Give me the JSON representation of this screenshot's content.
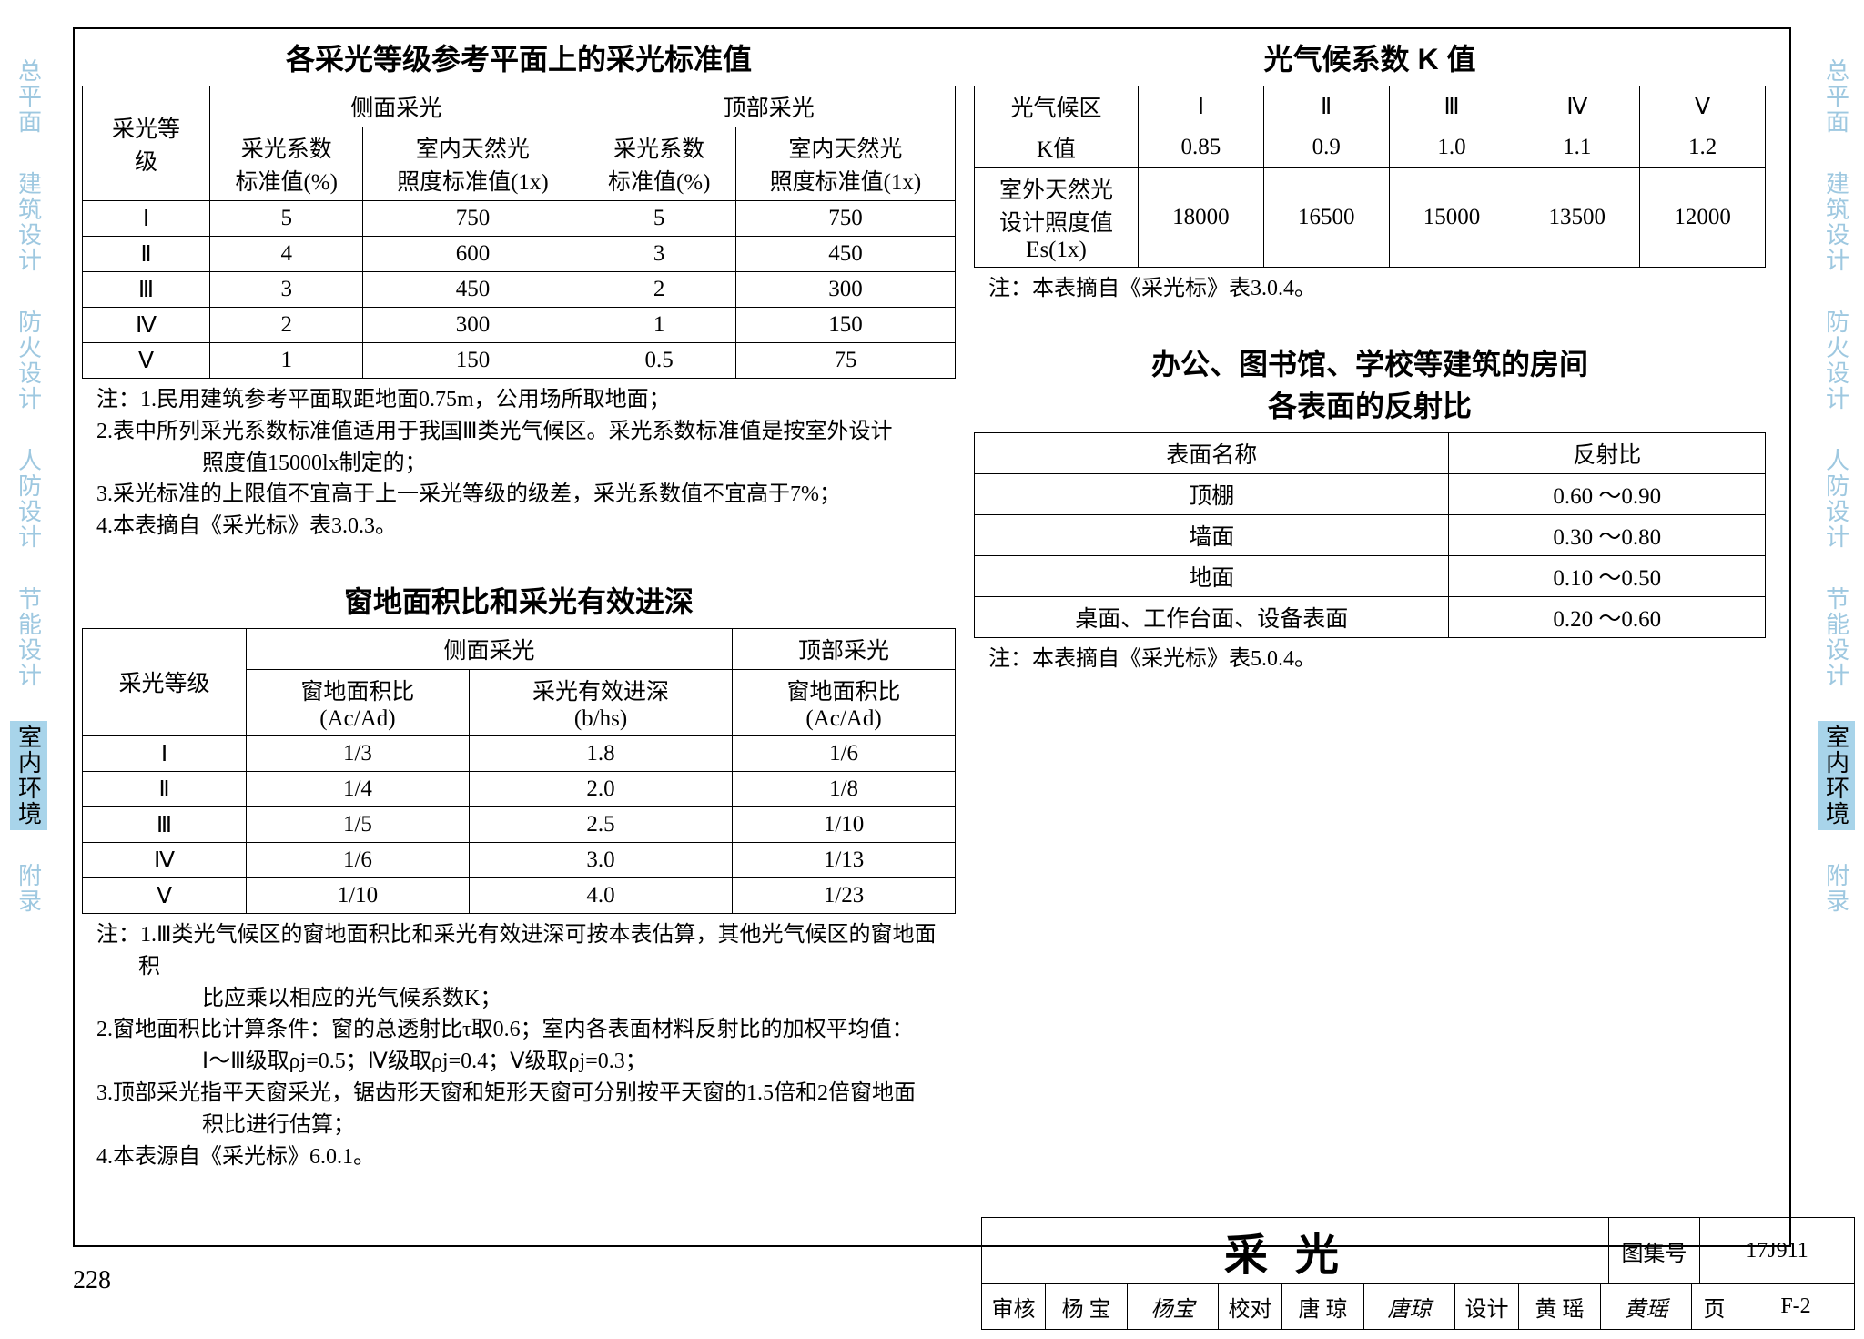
{
  "sidebar": {
    "items": [
      "总平面",
      "建筑设计",
      "防火设计",
      "人防设计",
      "节能设计",
      "室内环境",
      "附录"
    ],
    "active_index": 5
  },
  "table1": {
    "title": "各采光等级参考平面上的采光标准值",
    "head_rowspan": "采光等\n级",
    "head_group1": "侧面采光",
    "head_group2": "顶部采光",
    "sub1": "采光系数\n标准值(%)",
    "sub2": "室内天然光\n照度标准值(1x)",
    "sub3": "采光系数\n标准值(%)",
    "sub4": "室内天然光\n照度标准值(1x)",
    "rows": [
      [
        "Ⅰ",
        "5",
        "750",
        "5",
        "750"
      ],
      [
        "Ⅱ",
        "4",
        "600",
        "3",
        "450"
      ],
      [
        "Ⅲ",
        "3",
        "450",
        "2",
        "300"
      ],
      [
        "Ⅳ",
        "2",
        "300",
        "1",
        "150"
      ],
      [
        "Ⅴ",
        "1",
        "150",
        "0.5",
        "75"
      ]
    ],
    "notes": [
      "注：1.民用建筑参考平面取距地面0.75m，公用场所取地面；",
      "2.表中所列采光系数标准值适用于我国Ⅲ类光气候区。采光系数标准值是按室外设计",
      "照度值15000lx制定的；",
      "3.采光标准的上限值不宜高于上一采光等级的级差，采光系数值不宜高于7%；",
      "4.本表摘自《采光标》表3.0.3。"
    ]
  },
  "table2": {
    "title": "窗地面积比和采光有效进深",
    "head_rowspan": "采光等级",
    "head_group1": "侧面采光",
    "head_group2": "顶部采光",
    "sub1": "窗地面积比\n(Ac/Ad)",
    "sub2": "采光有效进深\n(b/hs)",
    "sub3": "窗地面积比\n(Ac/Ad)",
    "rows": [
      [
        "Ⅰ",
        "1/3",
        "1.8",
        "1/6"
      ],
      [
        "Ⅱ",
        "1/4",
        "2.0",
        "1/8"
      ],
      [
        "Ⅲ",
        "1/5",
        "2.5",
        "1/10"
      ],
      [
        "Ⅳ",
        "1/6",
        "3.0",
        "1/13"
      ],
      [
        "Ⅴ",
        "1/10",
        "4.0",
        "1/23"
      ]
    ],
    "notes": [
      "注：1.Ⅲ类光气候区的窗地面积比和采光有效进深可按本表估算，其他光气候区的窗地面积",
      "比应乘以相应的光气候系数K；",
      "2.窗地面积比计算条件：窗的总透射比τ取0.6；室内各表面材料反射比的加权平均值：",
      "Ⅰ～Ⅲ级取ρj=0.5；Ⅳ级取ρj=0.4；Ⅴ级取ρj=0.3；",
      "3.顶部采光指平天窗采光，锯齿形天窗和矩形天窗可分别按平天窗的1.5倍和2倍窗地面",
      "积比进行估算；",
      "4.本表源自《采光标》6.0.1。"
    ]
  },
  "table3": {
    "title": "光气候系数 K 值",
    "header": [
      "光气候区",
      "Ⅰ",
      "Ⅱ",
      "Ⅲ",
      "Ⅳ",
      "Ⅴ"
    ],
    "rows": [
      [
        "K值",
        "0.85",
        "0.9",
        "1.0",
        "1.1",
        "1.2"
      ],
      [
        "室外天然光\n设计照度值\nEs(1x)",
        "18000",
        "16500",
        "15000",
        "13500",
        "12000"
      ]
    ],
    "note": "注：本表摘自《采光标》表3.0.4。"
  },
  "table4": {
    "title1": "办公、图书馆、学校等建筑的房间",
    "title2": "各表面的反射比",
    "header": [
      "表面名称",
      "反射比"
    ],
    "rows": [
      [
        "顶棚",
        "0.60 ～0.90"
      ],
      [
        "墙面",
        "0.30 ～0.80"
      ],
      [
        "地面",
        "0.10 ～0.50"
      ],
      [
        "桌面、工作台面、设备表面",
        "0.20 ～0.60"
      ]
    ],
    "note": "注：本表摘自《采光标》表5.0.4。"
  },
  "footer": {
    "title": "采光",
    "set_label": "图集号",
    "set_value": "17J911",
    "review_label": "审核",
    "review_name": "杨 宝",
    "review_sig": "杨宝",
    "check_label": "校对",
    "check_name": "唐 琼",
    "check_sig": "唐琼",
    "design_label": "设计",
    "design_name": "黄 瑶",
    "design_sig": "黄瑶",
    "page_label": "页",
    "page_value": "F-2"
  },
  "page_number": "228"
}
